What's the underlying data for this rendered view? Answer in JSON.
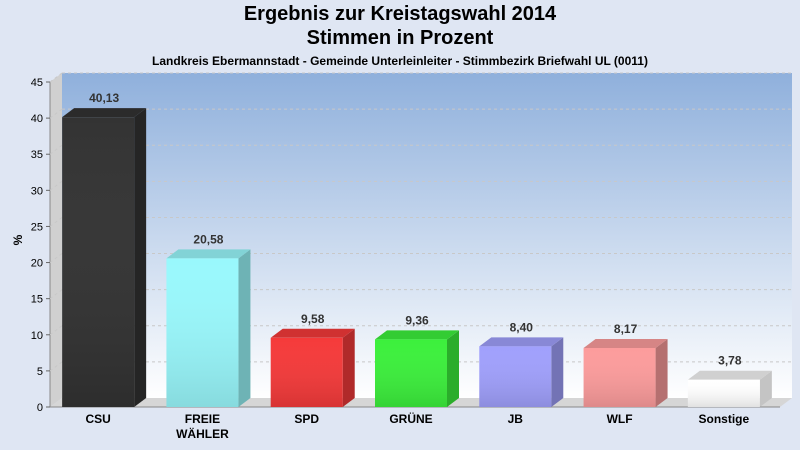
{
  "chart_data": {
    "type": "bar",
    "title": "Ergebnis zur Kreistagswahl 2014",
    "subtitle": "Stimmen in Prozent",
    "subsubtitle": "Landkreis Ebermannstadt - Gemeinde Unterleinleiter - Stimmbezirk Briefwahl UL (0011)",
    "ylabel": "%",
    "ylim": [
      0,
      45
    ],
    "yticks": [
      0,
      5,
      10,
      15,
      20,
      25,
      30,
      35,
      40,
      45
    ],
    "grid": true,
    "categories": [
      {
        "lines": [
          "CSU"
        ]
      },
      {
        "lines": [
          "FREIE",
          "WÄHLER"
        ]
      },
      {
        "lines": [
          "SPD"
        ]
      },
      {
        "lines": [
          "GRÜNE"
        ]
      },
      {
        "lines": [
          "JB"
        ]
      },
      {
        "lines": [
          "WLF"
        ]
      },
      {
        "lines": [
          "Sonstige"
        ]
      }
    ],
    "values": [
      40.13,
      20.58,
      9.58,
      9.36,
      8.4,
      8.17,
      3.78
    ],
    "value_labels": [
      "40,13",
      "20,58",
      "9,58",
      "9,36",
      "8,40",
      "8,17",
      "3,78"
    ],
    "colors": [
      "#333333",
      "#99f8fc",
      "#f53a3a",
      "#3cf03c",
      "#a0a0fc",
      "#fc9c9c",
      "#ffffff"
    ]
  }
}
